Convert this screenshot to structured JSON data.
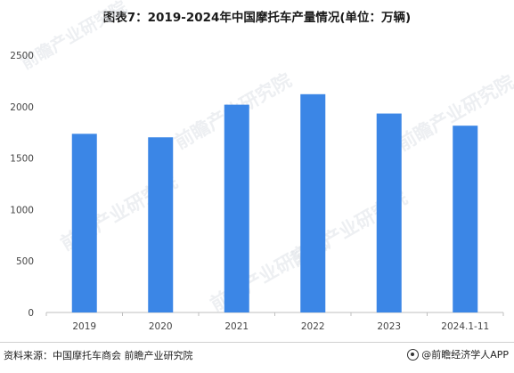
{
  "title": "图表7：2019-2024年中国摩托车产量情况(单位：万辆)",
  "watermark_text": "前瞻产业研究院",
  "colors": {
    "bar": "#3b86e6",
    "axis_text": "#444444",
    "axis_line": "#bfbfbf",
    "watermark": "#dfe3e8"
  },
  "chart_data": {
    "type": "bar",
    "title": "图表7：2019-2024年中国摩托车产量情况(单位：万辆)",
    "categories": [
      "2019",
      "2020",
      "2021",
      "2022",
      "2023",
      "2024.1-11"
    ],
    "values": [
      1736,
      1702,
      2019,
      2121,
      1933,
      1815
    ],
    "ylim": [
      0,
      2500
    ],
    "yticks": [
      "0",
      "500",
      "1000",
      "1500",
      "2000",
      "2500"
    ],
    "xlabel": "",
    "ylabel": "",
    "grid": false,
    "legend": "none"
  },
  "footer": {
    "source": "资料来源：中国摩托车商会 前瞻产业研究院",
    "brand": "@前瞻经济学人APP",
    "brand_icon": "qianzhan-logo-icon"
  }
}
